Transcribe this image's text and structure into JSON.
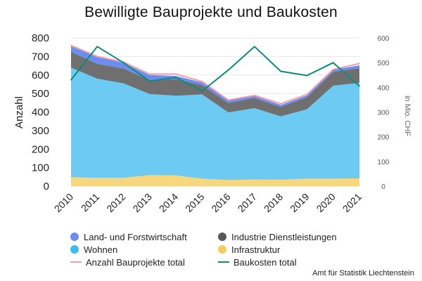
{
  "chart_data": {
    "type": "area",
    "title": "Bewilligte Bauprojekte und Baukosten",
    "ylabel": "Anzahl",
    "y2label": "in Mio. CHF",
    "ylim": [
      0,
      800
    ],
    "y2lim": [
      0,
      600
    ],
    "yticks": [
      0,
      100,
      200,
      300,
      400,
      500,
      600,
      700,
      800
    ],
    "y2ticks": [
      0,
      100,
      200,
      300,
      400,
      500,
      600
    ],
    "categories": [
      "2010",
      "2011",
      "2012",
      "2013",
      "2014",
      "2015",
      "2016",
      "2017",
      "2018",
      "2019",
      "2020",
      "2021"
    ],
    "stacked_series": [
      {
        "name": "Infrastruktur",
        "color": "#f6d67e",
        "values": [
          48,
          45,
          45,
          60,
          58,
          40,
          33,
          36,
          35,
          40,
          40,
          42
        ]
      },
      {
        "name": "Wohnen",
        "color": "#6ccaf3",
        "values": [
          592,
          535,
          510,
          437,
          430,
          455,
          365,
          385,
          342,
          375,
          502,
          515
        ]
      },
      {
        "name": "Industrie Dienstleistungen",
        "color": "#6f6f6f",
        "values": [
          85,
          80,
          80,
          75,
          90,
          50,
          50,
          55,
          50,
          65,
          75,
          80
        ]
      },
      {
        "name": "Land- und Forstwirtschaft",
        "color": "#6b8df0",
        "values": [
          30,
          40,
          30,
          28,
          17,
          15,
          15,
          10,
          12,
          10,
          12,
          15
        ]
      }
    ],
    "line_series": [
      {
        "name": "Anzahl Bauprojekte total",
        "color": "#f2a0a8",
        "axis": "left",
        "values": [
          760,
          700,
          670,
          605,
          605,
          565,
          465,
          490,
          445,
          495,
          630,
          662
        ]
      },
      {
        "name": "Baukosten total",
        "color": "#0f8a7a",
        "axis": "right",
        "values": [
          430,
          565,
          500,
          425,
          440,
          385,
          470,
          565,
          465,
          448,
          500,
          405
        ]
      }
    ],
    "grid": true,
    "legend_position": "bottom"
  },
  "legend": {
    "items": [
      {
        "label": "Land- und Forstwirtschaft",
        "kind": "dot",
        "color": "#6b8df0"
      },
      {
        "label": "Industrie Dienstleistungen",
        "kind": "dot",
        "color": "#575757"
      },
      {
        "label": "Wohnen",
        "kind": "dot",
        "color": "#42b9ee"
      },
      {
        "label": "Infrastruktur",
        "kind": "dot",
        "color": "#f3cf62"
      },
      {
        "label": "Anzahl Bauprojekte total",
        "kind": "line",
        "color": "#f2a0a8"
      },
      {
        "label": "Baukosten total",
        "kind": "line",
        "color": "#0f8a7a"
      }
    ]
  },
  "source": "Amt für Statistik Liechtenstein"
}
